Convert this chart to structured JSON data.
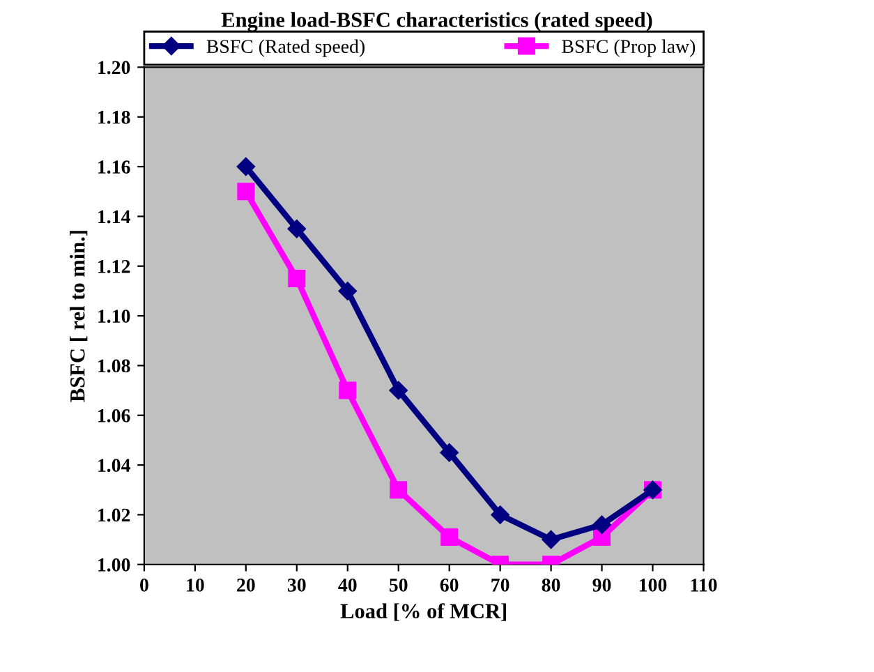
{
  "chart_data": {
    "type": "line",
    "title": "Engine load-BSFC characteristics (rated speed)",
    "xlabel": "Load [% of MCR]",
    "ylabel": "BSFC [ rel to min.]",
    "x": [
      20,
      30,
      40,
      50,
      60,
      70,
      80,
      90,
      100
    ],
    "series": [
      {
        "name": "BSFC (Rated speed)",
        "color": "#000080",
        "marker": "diamond",
        "values": [
          1.16,
          1.135,
          1.11,
          1.07,
          1.045,
          1.02,
          1.01,
          1.016,
          1.03
        ]
      },
      {
        "name": "BSFC (Prop law)",
        "color": "#ff00ff",
        "marker": "square",
        "values": [
          1.15,
          1.115,
          1.07,
          1.03,
          1.011,
          1.0,
          1.0,
          1.011,
          1.03
        ]
      }
    ],
    "xlim": [
      0,
      110
    ],
    "xticks": [
      0,
      10,
      20,
      30,
      40,
      50,
      60,
      70,
      80,
      90,
      100,
      110
    ],
    "ylim": [
      1.0,
      1.2
    ],
    "yticks": [
      {
        "value": 1.0,
        "label": "1.00"
      },
      {
        "value": 1.02,
        "label": "1.02"
      },
      {
        "value": 1.04,
        "label": "1.04"
      },
      {
        "value": 1.06,
        "label": "1.06"
      },
      {
        "value": 1.08,
        "label": "1.08"
      },
      {
        "value": 1.1,
        "label": "1.10"
      },
      {
        "value": 1.12,
        "label": "1.12"
      },
      {
        "value": 1.14,
        "label": "1.14"
      },
      {
        "value": 1.16,
        "label": "1.16"
      },
      {
        "value": 1.18,
        "label": "1.18"
      },
      {
        "value": 1.2,
        "label": "1.20"
      }
    ],
    "grid": false,
    "legend": "top",
    "line_style": "solid"
  }
}
